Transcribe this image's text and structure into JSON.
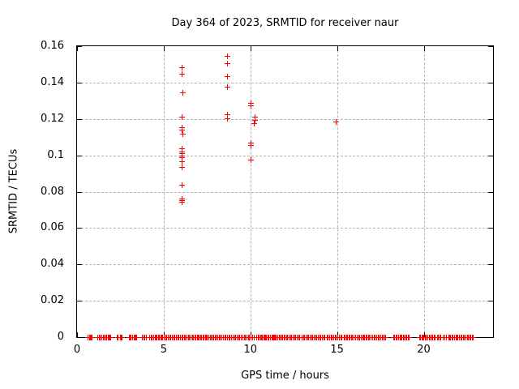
{
  "chart_data": {
    "type": "scatter",
    "title": "Day 364 of 2023, SRMTID for receiver naur",
    "xlabel": "GPS time / hours",
    "ylabel": "SRMTID / TECUs",
    "xlim": [
      0,
      24
    ],
    "ylim": [
      0,
      0.16
    ],
    "grid": true,
    "legend": "none",
    "marker": "plus",
    "marker_color": "#ff0000",
    "xticks": {
      "values": [
        0,
        5,
        10,
        15,
        20
      ],
      "labels": [
        "0",
        "5",
        "10",
        "15",
        "20"
      ]
    },
    "yticks": {
      "values": [
        0,
        0.02,
        0.04,
        0.06,
        0.08,
        0.1,
        0.12,
        0.14,
        0.16
      ],
      "labels": [
        "0",
        "0.02",
        "0.04",
        "0.06",
        "0.08",
        "0.1",
        "0.12",
        "0.14",
        "0.16"
      ]
    },
    "series": [
      {
        "name": "SRMTID",
        "color": "#ff0000",
        "points": [
          [
            6.08,
            0.1483
          ],
          [
            6.08,
            0.1446
          ],
          [
            6.1,
            0.1342
          ],
          [
            6.05,
            0.1208
          ],
          [
            6.08,
            0.1154
          ],
          [
            6.08,
            0.1139
          ],
          [
            6.09,
            0.1116
          ],
          [
            6.05,
            0.1038
          ],
          [
            6.07,
            0.102
          ],
          [
            6.05,
            0.1008
          ],
          [
            6.08,
            0.0998
          ],
          [
            6.05,
            0.0986
          ],
          [
            6.08,
            0.0967
          ],
          [
            6.08,
            0.0934
          ],
          [
            6.05,
            0.0834
          ],
          [
            6.04,
            0.076
          ],
          [
            6.08,
            0.0751
          ],
          [
            6.05,
            0.0744
          ],
          [
            8.68,
            0.1544
          ],
          [
            8.7,
            0.1503
          ],
          [
            8.68,
            0.1433
          ],
          [
            8.66,
            0.1377
          ],
          [
            8.68,
            0.1224
          ],
          [
            8.68,
            0.1202
          ],
          [
            10.02,
            0.1285
          ],
          [
            10.02,
            0.1271
          ],
          [
            10.03,
            0.1067
          ],
          [
            10.03,
            0.1056
          ],
          [
            10.04,
            0.0972
          ],
          [
            10.27,
            0.1211
          ],
          [
            10.25,
            0.1194
          ],
          [
            10.22,
            0.1176
          ],
          [
            14.97,
            0.1183
          ]
        ]
      }
    ],
    "zero_band": {
      "y": 0,
      "color": "#ff0000",
      "mark_spacing_hours": 0.08,
      "segments_hours": [
        [
          0.65,
          0.72
        ],
        [
          0.78,
          0.88
        ],
        [
          1.2,
          1.42
        ],
        [
          1.5,
          1.72
        ],
        [
          1.78,
          1.95
        ],
        [
          2.3,
          2.38
        ],
        [
          2.5,
          2.58
        ],
        [
          3.0,
          3.2
        ],
        [
          3.28,
          3.45
        ],
        [
          3.78,
          3.98
        ],
        [
          4.2,
          4.5
        ],
        [
          4.55,
          4.9
        ],
        [
          4.95,
          6.05
        ],
        [
          6.1,
          6.65
        ],
        [
          6.72,
          7.2
        ],
        [
          7.28,
          7.4
        ],
        [
          7.45,
          7.68
        ],
        [
          7.75,
          7.9
        ],
        [
          7.97,
          8.12
        ],
        [
          8.2,
          10.2
        ],
        [
          10.37,
          10.52
        ],
        [
          10.6,
          10.77
        ],
        [
          10.84,
          10.92
        ],
        [
          11.0,
          11.15
        ],
        [
          11.25,
          11.33
        ],
        [
          11.4,
          11.5
        ],
        [
          11.58,
          11.93
        ],
        [
          12.0,
          12.86
        ],
        [
          12.98,
          14.3
        ],
        [
          14.42,
          15.03
        ],
        [
          15.15,
          15.26
        ],
        [
          15.4,
          16.05
        ],
        [
          16.18,
          16.39
        ],
        [
          16.47,
          16.58
        ],
        [
          16.66,
          16.95
        ],
        [
          17.05,
          17.2
        ],
        [
          17.3,
          17.82
        ],
        [
          18.27,
          18.53
        ],
        [
          18.63,
          18.81
        ],
        [
          18.9,
          19.18
        ],
        [
          19.77,
          19.9
        ],
        [
          19.96,
          20.14
        ],
        [
          20.25,
          20.38
        ],
        [
          20.47,
          20.67
        ],
        [
          20.8,
          20.98
        ],
        [
          21.14,
          21.29
        ],
        [
          21.43,
          21.68
        ],
        [
          21.8,
          21.96
        ],
        [
          22.07,
          22.87
        ]
      ]
    },
    "style": {
      "background": "#ffffff",
      "axis_color": "#000000",
      "grid_color": "#b4b4b4"
    }
  }
}
